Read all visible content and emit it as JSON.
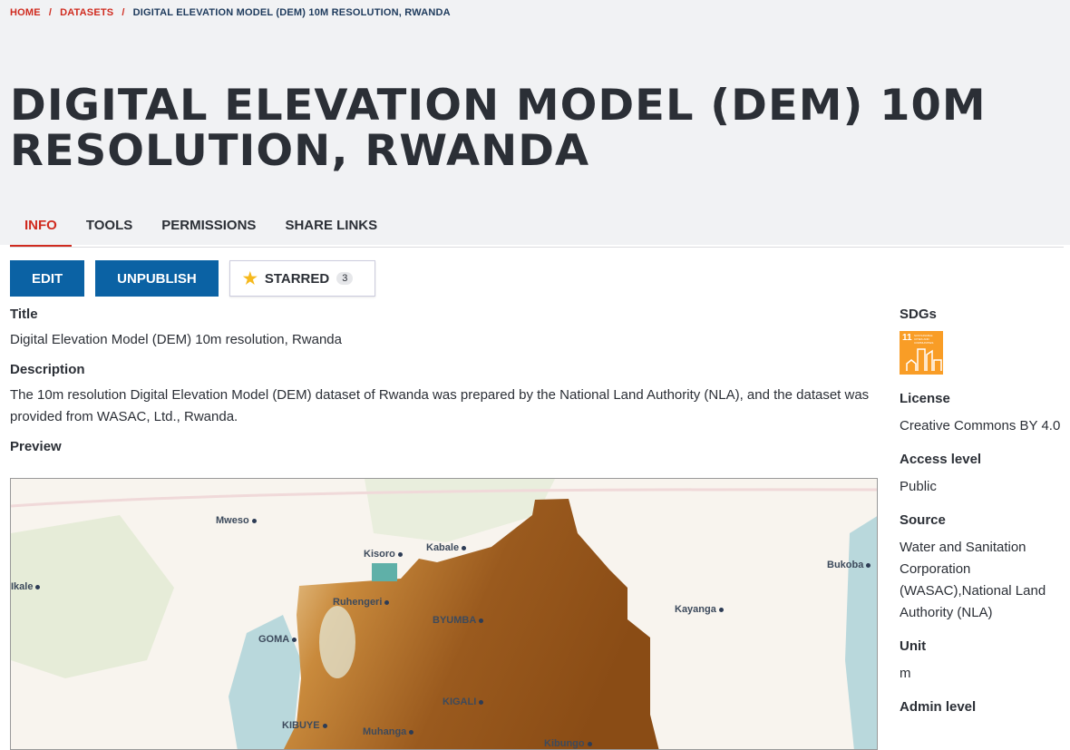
{
  "breadcrumb": {
    "home": "HOME",
    "datasets": "DATASETS",
    "current": "DIGITAL ELEVATION MODEL (DEM) 10M RESOLUTION, RWANDA"
  },
  "title": "DIGITAL ELEVATION MODEL (DEM) 10M RESOLUTION, RWANDA",
  "tabs": [
    {
      "label": "INFO",
      "active": true
    },
    {
      "label": "TOOLS"
    },
    {
      "label": "PERMISSIONS"
    },
    {
      "label": "SHARE LINKS"
    }
  ],
  "actions": {
    "edit": "EDIT",
    "unpublish": "UNPUBLISH",
    "starred": "STARRED",
    "star_count": "3"
  },
  "fields": {
    "title_label": "Title",
    "title_value": "Digital Elevation Model (DEM) 10m resolution, Rwanda",
    "description_label": "Description",
    "description_value": "The 10m resolution Digital Elevation Model (DEM) dataset of Rwanda was prepared by the National Land Authority (NLA), and the dataset was provided from WASAC, Ltd., Rwanda.",
    "preview_label": "Preview"
  },
  "map_labels": [
    "Mweso",
    "Kisoro",
    "Kabale",
    "Bukoba",
    "Ikale",
    "Ruhengeri",
    "BYUMBA",
    "Kayanga",
    "GOMA",
    "KIGALI",
    "KIBUYE",
    "Muhanga",
    "Kibungo"
  ],
  "sidebar": {
    "sdgs_label": "SDGs",
    "sdg_number": "11",
    "sdg_text": "SUSTAINABLE CITIES AND COMMUNITIES",
    "sdg_color": "#f99d26",
    "license_label": "License",
    "license_value": "Creative Commons BY 4.0",
    "access_label": "Access level",
    "access_value": "Public",
    "source_label": "Source",
    "source_value": "Water and Sanitation Corporation (WASAC),National Land Authority (NLA)",
    "unit_label": "Unit",
    "unit_value": "m",
    "admin_label": "Admin level"
  },
  "colors": {
    "accent": "#d02b1f",
    "primary": "#0b62a4"
  }
}
